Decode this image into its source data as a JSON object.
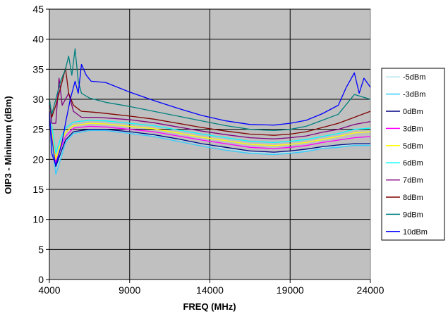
{
  "chart_data": {
    "type": "line",
    "xlabel": "FREQ (MHz)",
    "ylabel": "OIP3 - Minimum (dBm)",
    "xlim": [
      4000,
      24000
    ],
    "ylim": [
      0,
      45
    ],
    "xticks": [
      4000,
      9000,
      14000,
      19000,
      24000
    ],
    "yticks": [
      0,
      5,
      10,
      15,
      20,
      25,
      30,
      35,
      40,
      45
    ],
    "grid": true,
    "plot_background": "#C0C0C0",
    "legend_position": "right",
    "series": [
      {
        "name": "-5dBm",
        "color": "#B4E6F0",
        "x": [
          4000,
          4150,
          4400,
          4700,
          5000,
          5500,
          6500,
          7500,
          9000,
          10500,
          12000,
          13500,
          15000,
          16500,
          18000,
          19000,
          20000,
          21000,
          22000,
          23000,
          24000
        ],
        "y": [
          30,
          24,
          18.5,
          20.5,
          23,
          24.5,
          25,
          25,
          24.5,
          24,
          23.3,
          22.5,
          21.8,
          21.2,
          21,
          21.2,
          21.5,
          22,
          22.2,
          22.5,
          22.5
        ]
      },
      {
        "name": "-3dBm",
        "color": "#33CCFF",
        "x": [
          4000,
          4150,
          4400,
          4700,
          5000,
          5500,
          6500,
          7500,
          9000,
          10500,
          12000,
          13500,
          15000,
          16500,
          18000,
          19000,
          20000,
          21000,
          22000,
          23000,
          24000
        ],
        "y": [
          29,
          23.5,
          17.5,
          20,
          22.8,
          24.3,
          24.8,
          24.8,
          24.3,
          23.8,
          23,
          22.2,
          21.5,
          21,
          20.8,
          21,
          21.3,
          21.8,
          22,
          22.3,
          22.3
        ]
      },
      {
        "name": "0dBm",
        "color": "#000080",
        "x": [
          4000,
          4150,
          4400,
          4700,
          5000,
          5500,
          6500,
          7500,
          9000,
          10500,
          12000,
          13500,
          15000,
          16500,
          18000,
          19000,
          20000,
          21000,
          22000,
          23000,
          24000
        ],
        "y": [
          29.5,
          24,
          18.8,
          21,
          23.2,
          24.6,
          25,
          25,
          24.6,
          24.1,
          23.4,
          22.6,
          22,
          21.4,
          21.2,
          21.4,
          21.7,
          22.1,
          22.4,
          22.6,
          22.6
        ]
      },
      {
        "name": "3dBm",
        "color": "#FF00FF",
        "x": [
          4000,
          4150,
          4400,
          4700,
          5000,
          5500,
          6500,
          7500,
          9000,
          10500,
          12000,
          13500,
          15000,
          16500,
          18000,
          19000,
          20000,
          21000,
          22000,
          23000,
          24000
        ],
        "y": [
          29.8,
          24.5,
          19.5,
          21.8,
          23.8,
          25.2,
          25.5,
          25.4,
          25,
          24.6,
          23.9,
          23.2,
          22.6,
          22,
          21.8,
          22,
          22.3,
          22.8,
          23.2,
          23.6,
          23.8
        ]
      },
      {
        "name": "5dBm",
        "color": "#FFFF00",
        "x": [
          4000,
          4150,
          4400,
          4700,
          5000,
          5500,
          6500,
          7500,
          9000,
          10500,
          12000,
          13500,
          15000,
          16500,
          18000,
          19000,
          20000,
          21000,
          22000,
          23000,
          24000
        ],
        "y": [
          30,
          25,
          20,
          22.5,
          24.5,
          25.6,
          26,
          25.9,
          25.5,
          25.1,
          24.4,
          23.7,
          23.1,
          22.5,
          22.3,
          22.5,
          22.8,
          23.3,
          23.8,
          24.4,
          24.6
        ]
      },
      {
        "name": "6dBm",
        "color": "#00FFFF",
        "x": [
          4000,
          4150,
          4400,
          4700,
          5000,
          5500,
          6500,
          7500,
          9000,
          10500,
          12000,
          13500,
          15000,
          16500,
          18000,
          19000,
          20000,
          21000,
          22000,
          23000,
          24000
        ],
        "y": [
          30.2,
          25.5,
          21,
          23.5,
          25.2,
          26.2,
          26.5,
          26.4,
          26,
          25.6,
          24.9,
          24.2,
          23.6,
          23,
          22.8,
          23,
          23.3,
          23.8,
          24.3,
          25,
          25.2
        ]
      },
      {
        "name": "7dBm",
        "color": "#800080",
        "x": [
          4000,
          4150,
          4400,
          4600,
          4800,
          5000,
          5200,
          5500,
          6000,
          7000,
          8000,
          9000,
          10500,
          12000,
          13500,
          15000,
          16500,
          18000,
          19000,
          20000,
          21000,
          22000,
          23000,
          24000
        ],
        "y": [
          30,
          26,
          26,
          33.5,
          29,
          30,
          31,
          28,
          27,
          27,
          26.8,
          26.6,
          26.1,
          25.4,
          24.7,
          24.1,
          23.6,
          23.4,
          23.6,
          23.9,
          24.5,
          25,
          25.8,
          26.3
        ]
      },
      {
        "name": "8dBm",
        "color": "#800000",
        "x": [
          4000,
          4150,
          4400,
          4600,
          4800,
          5000,
          5200,
          5500,
          6000,
          7000,
          8000,
          9000,
          10500,
          12000,
          13500,
          15000,
          16500,
          18000,
          19000,
          20000,
          21000,
          22000,
          23000,
          24000
        ],
        "y": [
          30,
          27,
          29,
          31,
          33,
          35.2,
          31,
          29,
          28,
          27.8,
          27.5,
          27.2,
          26.7,
          26,
          25.3,
          24.7,
          24.2,
          24,
          24.2,
          24.6,
          25.3,
          26,
          27,
          28
        ]
      },
      {
        "name": "9dBm",
        "color": "#008080",
        "x": [
          4000,
          4150,
          4400,
          4700,
          5000,
          5200,
          5400,
          5600,
          5800,
          6000,
          6500,
          7500,
          9000,
          10500,
          12000,
          13500,
          15000,
          16500,
          18000,
          19000,
          20000,
          21000,
          22000,
          23000,
          24000
        ],
        "y": [
          30,
          27.5,
          30,
          33,
          35,
          37.2,
          34,
          38.4,
          33,
          31,
          30.2,
          29.5,
          28.8,
          28,
          27.2,
          26.4,
          25.6,
          25,
          24.8,
          25,
          25.5,
          26.5,
          27.5,
          30.8,
          30
        ]
      },
      {
        "name": "10dBm",
        "color": "#0000FF",
        "x": [
          4000,
          4150,
          4400,
          4600,
          4800,
          5000,
          5300,
          5600,
          5800,
          6000,
          6300,
          6600,
          7500,
          9000,
          10500,
          12000,
          13500,
          15000,
          16500,
          18000,
          19000,
          20000,
          21000,
          22000,
          22500,
          23000,
          23300,
          23600,
          24000
        ],
        "y": [
          28,
          21,
          19,
          21,
          23,
          26,
          30,
          33,
          31,
          35.8,
          34,
          33,
          32.8,
          31.2,
          29.8,
          28.5,
          27.3,
          26.4,
          25.8,
          25.7,
          26,
          26.5,
          27.6,
          29,
          32,
          34.4,
          31,
          33.5,
          32
        ]
      }
    ]
  }
}
